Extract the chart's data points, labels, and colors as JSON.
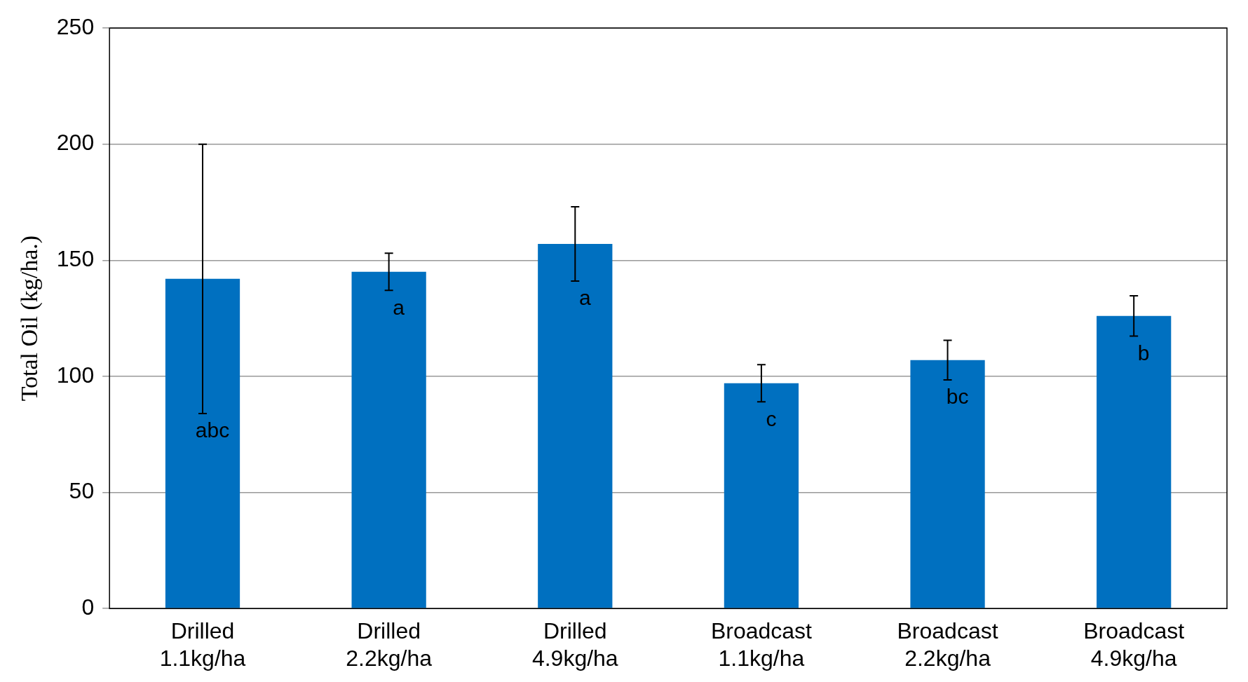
{
  "chart_data": {
    "type": "bar",
    "ylabel": "Total Oil (kg/ha.)",
    "categories": [
      "Drilled 1.1kg/ha",
      "Drilled 2.2kg/ha",
      "Drilled 4.9kg/ha",
      "Broadcast 1.1kg/ha",
      "Broadcast 2.2kg/ha",
      "Broadcast 4.9kg/ha"
    ],
    "values": [
      142,
      145,
      157,
      97,
      107,
      126
    ],
    "errors": [
      58,
      8,
      16,
      8,
      8.5,
      8.7
    ],
    "color": "#0070c0",
    "ylim": [
      0,
      250
    ],
    "yticks": [
      0,
      50,
      100,
      150,
      200,
      250
    ],
    "grid": "y",
    "legend": false,
    "annotations": [
      {
        "text": "abc",
        "x": "Drilled 1.1kg/ha",
        "y": 84
      },
      {
        "text": "a",
        "x": "Drilled 2.2kg/ha",
        "y": 137
      },
      {
        "text": "a",
        "x": "Drilled 4.9kg/ha",
        "y": 141
      },
      {
        "text": "c",
        "x": "Broadcast 1.1kg/ha",
        "y": 89
      },
      {
        "text": "bc",
        "x": "Broadcast 2.2kg/ha",
        "y": 98.5
      },
      {
        "text": "b",
        "x": "Broadcast 4.9kg/ha",
        "y": 117.3
      }
    ]
  }
}
